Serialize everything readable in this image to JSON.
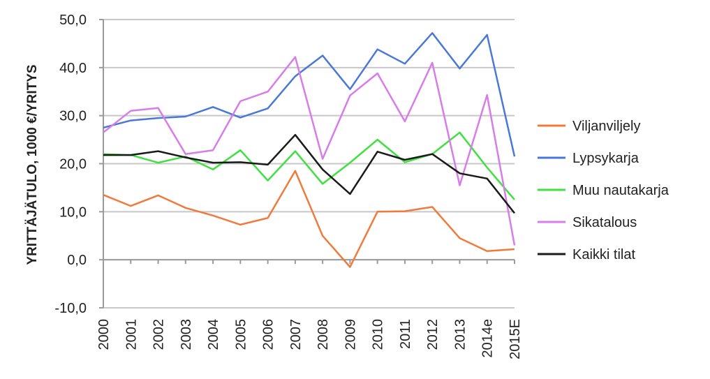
{
  "chart_data": {
    "type": "line",
    "title": "",
    "xlabel": "",
    "ylabel": "YRITTÄJÄTULO, 1000 €/YRITYS",
    "ylim": [
      -10,
      50
    ],
    "yticks": [
      "-10,0",
      "0,0",
      "10,0",
      "20,0",
      "30,0",
      "40,0",
      "50,0"
    ],
    "grid": "horizontal",
    "legend_position": "right",
    "categories": [
      "2000",
      "2001",
      "2002",
      "2003",
      "2004",
      "2005",
      "2006",
      "2007",
      "2008",
      "2009",
      "2010",
      "2011",
      "2012",
      "2013",
      "2014e",
      "2015E"
    ],
    "series": [
      {
        "name": "Viljanviljely",
        "color": "#f07a3c",
        "values": [
          13.5,
          11.2,
          13.4,
          10.8,
          9.2,
          7.3,
          8.7,
          18.5,
          5.0,
          -1.5,
          10.0,
          10.1,
          11.0,
          4.5,
          1.8,
          2.2
        ]
      },
      {
        "name": "Lypsykarja",
        "color": "#4a78d8",
        "values": [
          27.5,
          29.0,
          29.5,
          29.8,
          31.8,
          29.6,
          31.5,
          38.2,
          42.5,
          35.5,
          43.8,
          40.8,
          47.2,
          39.8,
          46.8,
          21.5
        ]
      },
      {
        "name": "Muu nautakarja",
        "color": "#3fe040",
        "values": [
          22.0,
          21.8,
          20.2,
          21.5,
          18.8,
          22.8,
          16.5,
          22.6,
          15.8,
          20.2,
          25.0,
          20.3,
          22.0,
          26.5,
          19.2,
          12.5
        ]
      },
      {
        "name": "Sikatalous",
        "color": "#d77ce8",
        "values": [
          26.5,
          31.0,
          31.6,
          22.0,
          22.8,
          33.0,
          35.0,
          42.2,
          21.0,
          34.2,
          38.8,
          28.8,
          41.0,
          15.5,
          34.3,
          3.0
        ]
      },
      {
        "name": "Kaikki tilat",
        "color": "#1a1a1a",
        "values": [
          21.8,
          21.8,
          22.6,
          21.3,
          20.2,
          20.3,
          19.8,
          26.0,
          18.8,
          13.7,
          22.5,
          20.8,
          22.0,
          18.0,
          16.9,
          9.7
        ]
      }
    ]
  }
}
